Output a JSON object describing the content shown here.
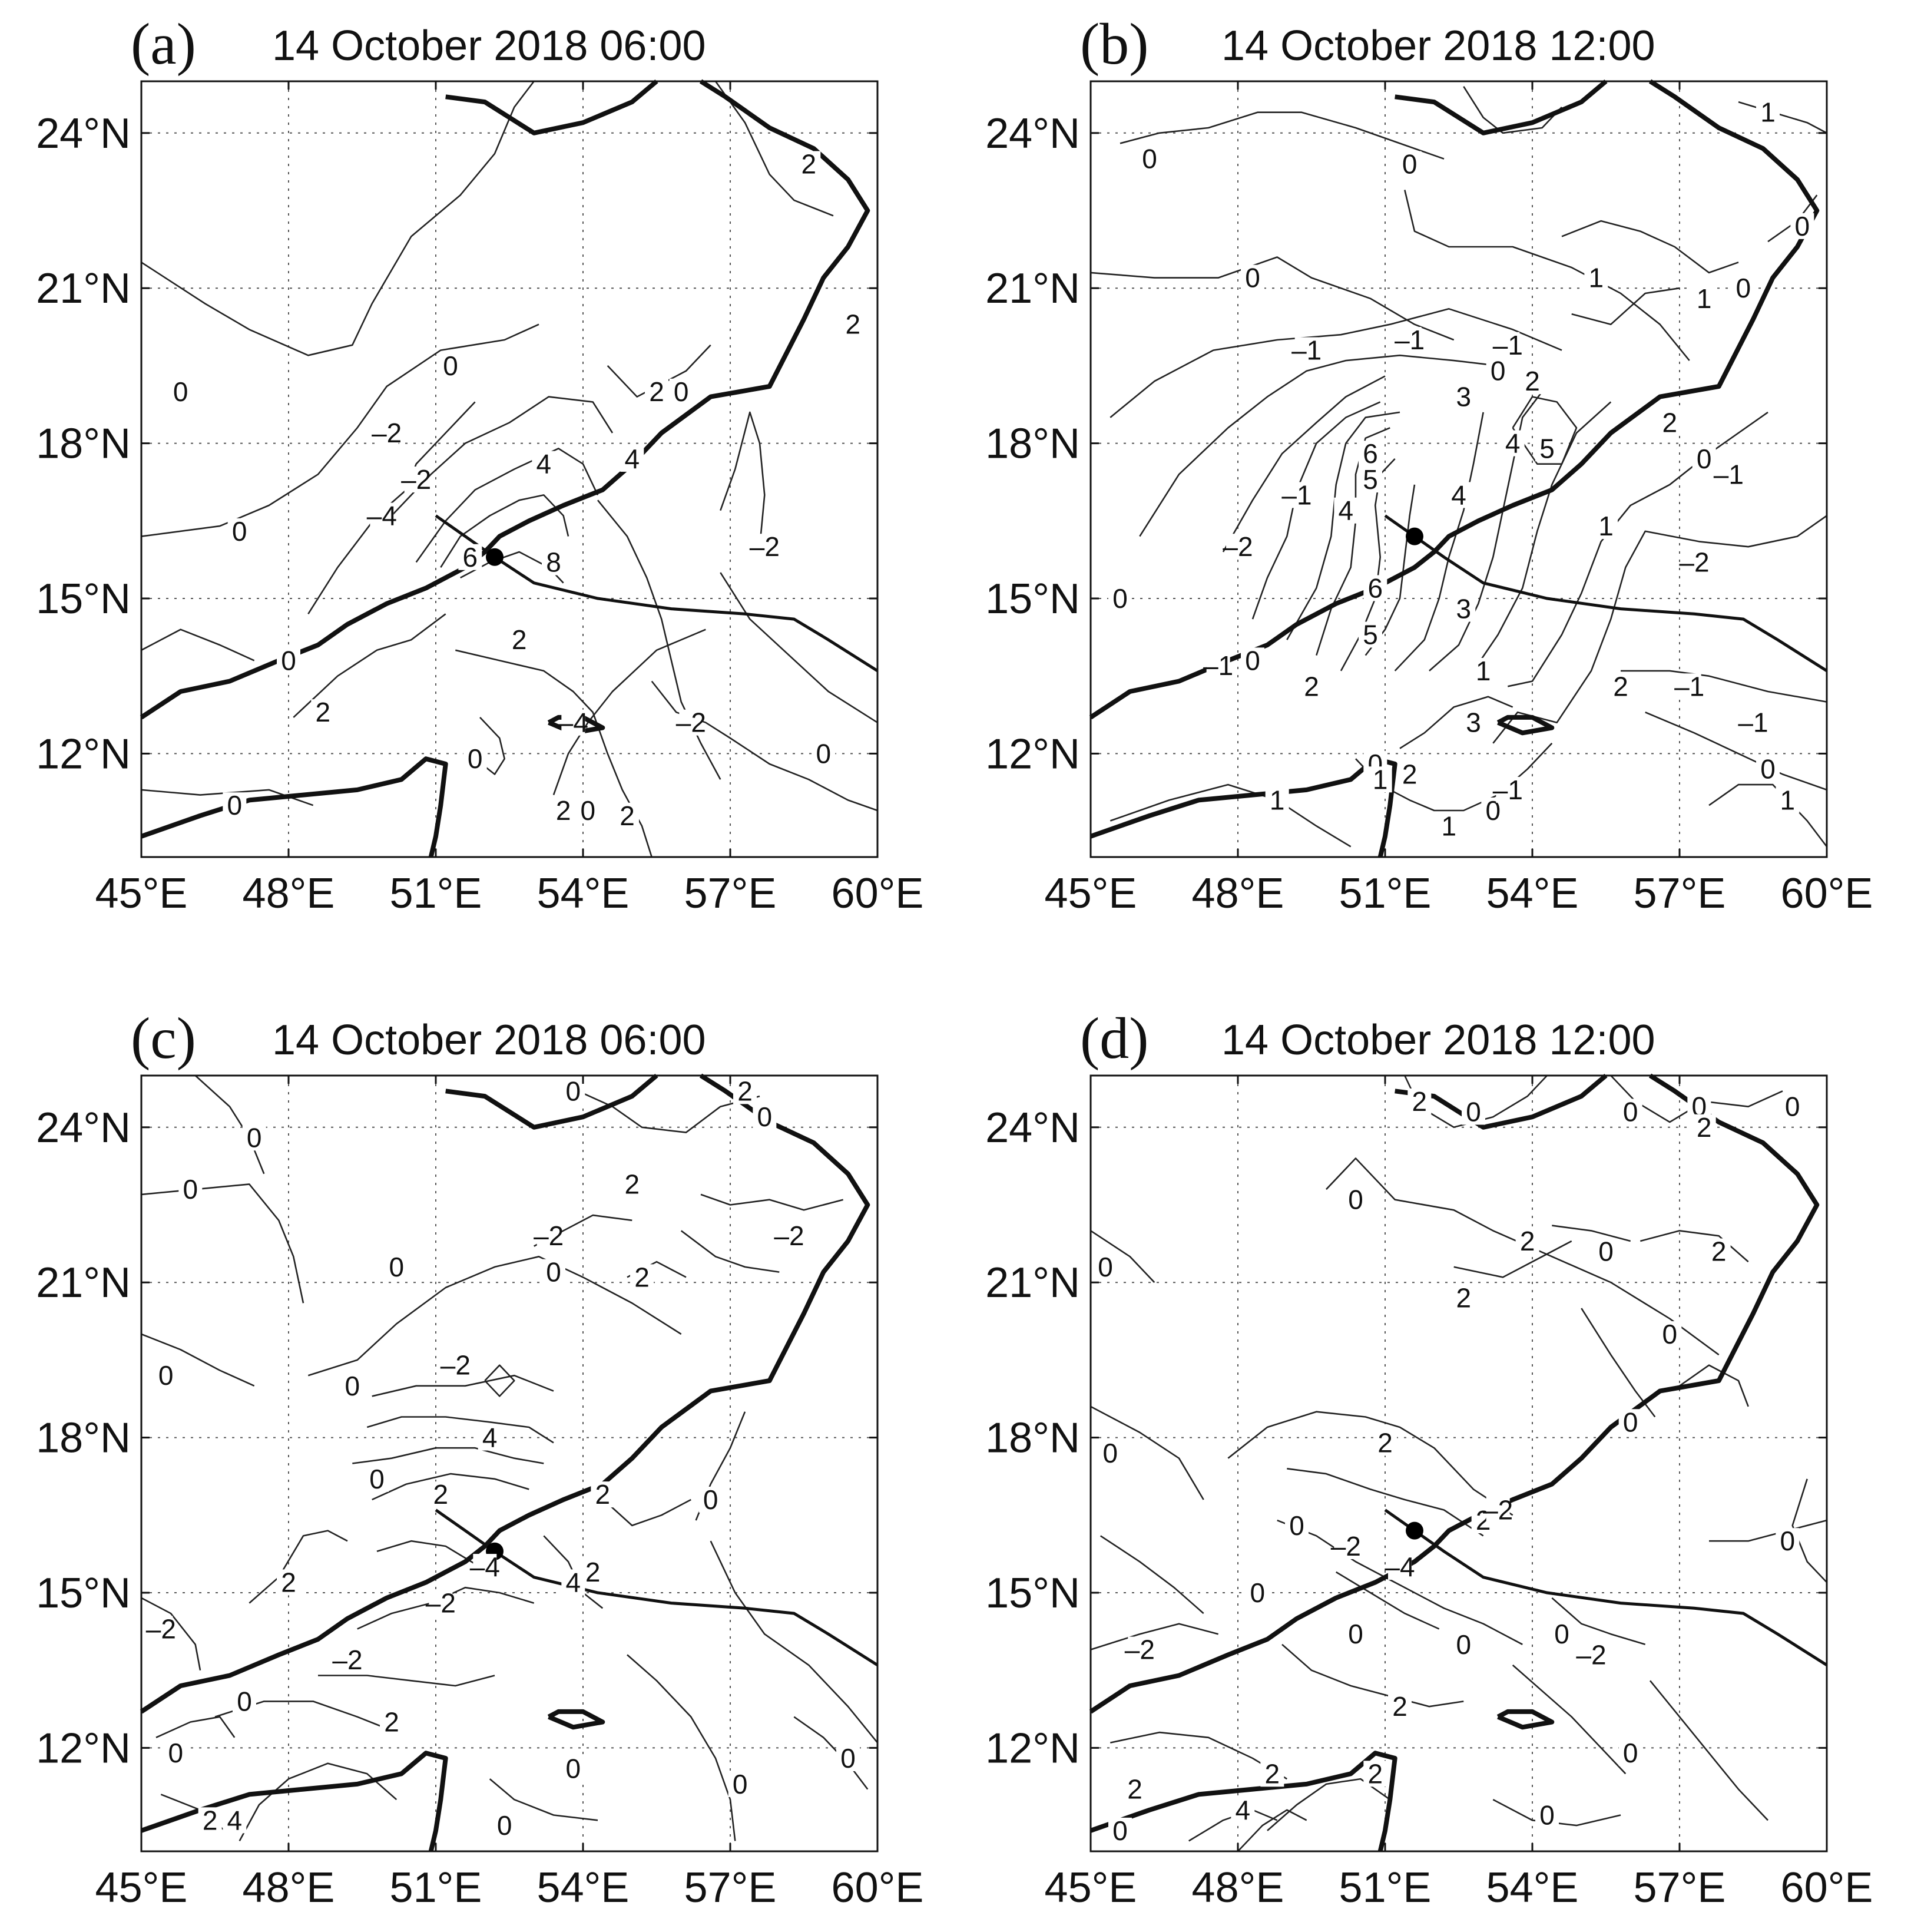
{
  "map": {
    "lon_ticks": [
      "45°E",
      "48°E",
      "51°E",
      "54°E",
      "57°E",
      "60°E"
    ],
    "lat_ticks": [
      "24°N",
      "21°N",
      "18°N",
      "15°N",
      "12°N"
    ],
    "extent": {
      "lon": [
        45,
        60
      ],
      "lat": [
        10,
        25
      ]
    }
  },
  "panels": [
    {
      "letter": "(a)",
      "title": "14 October 2018 06:00",
      "storm_center": {
        "lon": 52.2,
        "lat": 15.8
      },
      "contour_labels": [
        {
          "text": "2",
          "lon": 58.6,
          "lat": 23.4
        },
        {
          "text": "0",
          "lon": 45.8,
          "lat": 19.0
        },
        {
          "text": "0",
          "lon": 51.3,
          "lat": 19.5
        },
        {
          "text": "0",
          "lon": 56.0,
          "lat": 19.0
        },
        {
          "text": "2",
          "lon": 59.5,
          "lat": 20.3
        },
        {
          "text": "–2",
          "lon": 50.0,
          "lat": 18.2
        },
        {
          "text": "–2",
          "lon": 50.6,
          "lat": 17.3
        },
        {
          "text": "–4",
          "lon": 49.9,
          "lat": 16.6
        },
        {
          "text": "0",
          "lon": 47.0,
          "lat": 16.3
        },
        {
          "text": "4",
          "lon": 53.2,
          "lat": 17.6
        },
        {
          "text": "4",
          "lon": 55.0,
          "lat": 17.7
        },
        {
          "text": "2",
          "lon": 55.5,
          "lat": 19.0
        },
        {
          "text": "8",
          "lon": 53.4,
          "lat": 15.7
        },
        {
          "text": "6",
          "lon": 51.7,
          "lat": 15.8
        },
        {
          "text": "–2",
          "lon": 57.7,
          "lat": 16.0
        },
        {
          "text": "2",
          "lon": 52.7,
          "lat": 14.2
        },
        {
          "text": "0",
          "lon": 48.0,
          "lat": 13.8
        },
        {
          "text": "2",
          "lon": 48.7,
          "lat": 12.8
        },
        {
          "text": "0",
          "lon": 46.9,
          "lat": 11.0
        },
        {
          "text": "0",
          "lon": 51.8,
          "lat": 11.9
        },
        {
          "text": "–2",
          "lon": 56.2,
          "lat": 12.6
        },
        {
          "text": "0",
          "lon": 58.9,
          "lat": 12.0
        },
        {
          "text": "–4",
          "lon": 53.8,
          "lat": 12.6
        },
        {
          "text": "2",
          "lon": 53.6,
          "lat": 10.9
        },
        {
          "text": "0",
          "lon": 54.1,
          "lat": 10.9
        },
        {
          "text": "2",
          "lon": 54.9,
          "lat": 10.8
        }
      ]
    },
    {
      "letter": "(b)",
      "title": "14 October 2018 12:00",
      "storm_center": {
        "lon": 51.6,
        "lat": 16.2
      },
      "contour_labels": [
        {
          "text": "0",
          "lon": 46.2,
          "lat": 23.5
        },
        {
          "text": "0",
          "lon": 51.5,
          "lat": 23.4
        },
        {
          "text": "1",
          "lon": 58.8,
          "lat": 24.4
        },
        {
          "text": "0",
          "lon": 59.5,
          "lat": 22.2
        },
        {
          "text": "0",
          "lon": 58.3,
          "lat": 21.0
        },
        {
          "text": "0",
          "lon": 48.3,
          "lat": 21.2
        },
        {
          "text": "1",
          "lon": 55.3,
          "lat": 21.2
        },
        {
          "text": "1",
          "lon": 57.5,
          "lat": 20.8
        },
        {
          "text": "–1",
          "lon": 49.4,
          "lat": 19.8
        },
        {
          "text": "–1",
          "lon": 51.5,
          "lat": 20.0
        },
        {
          "text": "–1",
          "lon": 53.5,
          "lat": 19.9
        },
        {
          "text": "0",
          "lon": 53.3,
          "lat": 19.4
        },
        {
          "text": "2",
          "lon": 54.0,
          "lat": 19.2
        },
        {
          "text": "3",
          "lon": 52.6,
          "lat": 18.9
        },
        {
          "text": "2",
          "lon": 56.8,
          "lat": 18.4
        },
        {
          "text": "4",
          "lon": 53.6,
          "lat": 18.0
        },
        {
          "text": "5",
          "lon": 54.3,
          "lat": 17.9
        },
        {
          "text": "6",
          "lon": 50.7,
          "lat": 17.8
        },
        {
          "text": "5",
          "lon": 50.7,
          "lat": 17.3
        },
        {
          "text": "4",
          "lon": 52.5,
          "lat": 17.0
        },
        {
          "text": "–1",
          "lon": 49.2,
          "lat": 17.0
        },
        {
          "text": "4",
          "lon": 50.2,
          "lat": 16.7
        },
        {
          "text": "0",
          "lon": 57.5,
          "lat": 17.7
        },
        {
          "text": "–1",
          "lon": 58.0,
          "lat": 17.4
        },
        {
          "text": "1",
          "lon": 55.5,
          "lat": 16.4
        },
        {
          "text": "–2",
          "lon": 48.0,
          "lat": 16.0
        },
        {
          "text": "–2",
          "lon": 57.3,
          "lat": 15.7
        },
        {
          "text": "0",
          "lon": 45.6,
          "lat": 15.0
        },
        {
          "text": "6",
          "lon": 50.8,
          "lat": 15.2
        },
        {
          "text": "3",
          "lon": 52.6,
          "lat": 14.8
        },
        {
          "text": "5",
          "lon": 50.7,
          "lat": 14.3
        },
        {
          "text": "0",
          "lon": 48.3,
          "lat": 13.8
        },
        {
          "text": "–1",
          "lon": 47.6,
          "lat": 13.7
        },
        {
          "text": "2",
          "lon": 49.5,
          "lat": 13.3
        },
        {
          "text": "1",
          "lon": 53.0,
          "lat": 13.6
        },
        {
          "text": "2",
          "lon": 55.8,
          "lat": 13.3
        },
        {
          "text": "–1",
          "lon": 57.2,
          "lat": 13.3
        },
        {
          "text": "3",
          "lon": 52.8,
          "lat": 12.6
        },
        {
          "text": "–1",
          "lon": 58.5,
          "lat": 12.6
        },
        {
          "text": "0",
          "lon": 50.8,
          "lat": 11.8
        },
        {
          "text": "1",
          "lon": 50.9,
          "lat": 11.5
        },
        {
          "text": "2",
          "lon": 51.5,
          "lat": 11.6
        },
        {
          "text": "1",
          "lon": 48.8,
          "lat": 11.1
        },
        {
          "text": "0",
          "lon": 53.2,
          "lat": 10.9
        },
        {
          "text": "–1",
          "lon": 53.5,
          "lat": 11.3
        },
        {
          "text": "1",
          "lon": 52.3,
          "lat": 10.6
        },
        {
          "text": "0",
          "lon": 58.8,
          "lat": 11.7
        },
        {
          "text": "1",
          "lon": 59.2,
          "lat": 11.1
        }
      ]
    },
    {
      "letter": "(c)",
      "title": "14 October 2018 06:00",
      "storm_center": {
        "lon": 52.2,
        "lat": 15.8
      },
      "contour_labels": [
        {
          "text": "0",
          "lon": 47.3,
          "lat": 23.8
        },
        {
          "text": "0",
          "lon": 46.0,
          "lat": 22.8
        },
        {
          "text": "0",
          "lon": 53.8,
          "lat": 24.7
        },
        {
          "text": "2",
          "lon": 57.3,
          "lat": 24.7
        },
        {
          "text": "0",
          "lon": 57.7,
          "lat": 24.2
        },
        {
          "text": "2",
          "lon": 55.0,
          "lat": 22.9
        },
        {
          "text": "–2",
          "lon": 58.2,
          "lat": 21.9
        },
        {
          "text": "–2",
          "lon": 53.3,
          "lat": 21.9
        },
        {
          "text": "0",
          "lon": 50.2,
          "lat": 21.3
        },
        {
          "text": "0",
          "lon": 53.4,
          "lat": 21.2
        },
        {
          "text": "2",
          "lon": 55.2,
          "lat": 21.1
        },
        {
          "text": "0",
          "lon": 45.5,
          "lat": 19.2
        },
        {
          "text": "–2",
          "lon": 51.4,
          "lat": 19.4
        },
        {
          "text": "0",
          "lon": 49.3,
          "lat": 19.0
        },
        {
          "text": "4",
          "lon": 52.1,
          "lat": 18.0
        },
        {
          "text": "0",
          "lon": 49.8,
          "lat": 17.2
        },
        {
          "text": "2",
          "lon": 51.1,
          "lat": 16.9
        },
        {
          "text": "2",
          "lon": 54.4,
          "lat": 16.9
        },
        {
          "text": "0",
          "lon": 56.6,
          "lat": 16.8
        },
        {
          "text": "2",
          "lon": 48.0,
          "lat": 15.2
        },
        {
          "text": "–2",
          "lon": 45.4,
          "lat": 14.3
        },
        {
          "text": "–4",
          "lon": 52.0,
          "lat": 15.5
        },
        {
          "text": "–2",
          "lon": 51.1,
          "lat": 14.8
        },
        {
          "text": "4",
          "lon": 53.8,
          "lat": 15.2
        },
        {
          "text": "2",
          "lon": 54.2,
          "lat": 15.4
        },
        {
          "text": "–2",
          "lon": 49.2,
          "lat": 13.7
        },
        {
          "text": "0",
          "lon": 47.1,
          "lat": 12.9
        },
        {
          "text": "2",
          "lon": 50.1,
          "lat": 12.5
        },
        {
          "text": "0",
          "lon": 45.7,
          "lat": 11.9
        },
        {
          "text": "0",
          "lon": 53.8,
          "lat": 11.6
        },
        {
          "text": "0",
          "lon": 57.2,
          "lat": 11.3
        },
        {
          "text": "0",
          "lon": 59.4,
          "lat": 11.8
        },
        {
          "text": "2",
          "lon": 46.4,
          "lat": 10.6
        },
        {
          "text": "4",
          "lon": 46.9,
          "lat": 10.6
        },
        {
          "text": "0",
          "lon": 52.4,
          "lat": 10.5
        }
      ]
    },
    {
      "letter": "(d)",
      "title": "14 October 2018 12:00",
      "storm_center": {
        "lon": 51.6,
        "lat": 16.2
      },
      "contour_labels": [
        {
          "text": "2",
          "lon": 51.7,
          "lat": 24.5
        },
        {
          "text": "0",
          "lon": 52.8,
          "lat": 24.3
        },
        {
          "text": "0",
          "lon": 56.0,
          "lat": 24.3
        },
        {
          "text": "0",
          "lon": 57.4,
          "lat": 24.4
        },
        {
          "text": "2",
          "lon": 57.5,
          "lat": 24.0
        },
        {
          "text": "0",
          "lon": 59.3,
          "lat": 24.4
        },
        {
          "text": "0",
          "lon": 50.4,
          "lat": 22.6
        },
        {
          "text": "0",
          "lon": 45.3,
          "lat": 21.3
        },
        {
          "text": "2",
          "lon": 53.9,
          "lat": 21.8
        },
        {
          "text": "0",
          "lon": 55.5,
          "lat": 21.6
        },
        {
          "text": "2",
          "lon": 57.8,
          "lat": 21.6
        },
        {
          "text": "2",
          "lon": 52.6,
          "lat": 20.7
        },
        {
          "text": "0",
          "lon": 56.8,
          "lat": 20.0
        },
        {
          "text": "0",
          "lon": 56.0,
          "lat": 18.3
        },
        {
          "text": "0",
          "lon": 45.4,
          "lat": 17.7
        },
        {
          "text": "2",
          "lon": 51.0,
          "lat": 17.9
        },
        {
          "text": "0",
          "lon": 49.2,
          "lat": 16.3
        },
        {
          "text": "–2",
          "lon": 50.2,
          "lat": 15.9
        },
        {
          "text": "–4",
          "lon": 51.3,
          "lat": 15.5
        },
        {
          "text": "2",
          "lon": 53.0,
          "lat": 16.4
        },
        {
          "text": "–2",
          "lon": 53.3,
          "lat": 16.6
        },
        {
          "text": "0",
          "lon": 59.2,
          "lat": 16.0
        },
        {
          "text": "0",
          "lon": 48.4,
          "lat": 15.0
        },
        {
          "text": "0",
          "lon": 50.4,
          "lat": 14.2
        },
        {
          "text": "0",
          "lon": 52.6,
          "lat": 14.0
        },
        {
          "text": "0",
          "lon": 54.6,
          "lat": 14.2
        },
        {
          "text": "–2",
          "lon": 55.2,
          "lat": 13.8
        },
        {
          "text": "–2",
          "lon": 46.0,
          "lat": 13.9
        },
        {
          "text": "2",
          "lon": 51.3,
          "lat": 12.8
        },
        {
          "text": "2",
          "lon": 45.9,
          "lat": 11.2
        },
        {
          "text": "2",
          "lon": 48.7,
          "lat": 11.5
        },
        {
          "text": "2",
          "lon": 50.8,
          "lat": 11.5
        },
        {
          "text": "4",
          "lon": 48.1,
          "lat": 10.8
        },
        {
          "text": "0",
          "lon": 56.0,
          "lat": 11.9
        },
        {
          "text": "0",
          "lon": 54.3,
          "lat": 10.7
        },
        {
          "text": "0",
          "lon": 45.6,
          "lat": 10.4
        }
      ]
    }
  ]
}
